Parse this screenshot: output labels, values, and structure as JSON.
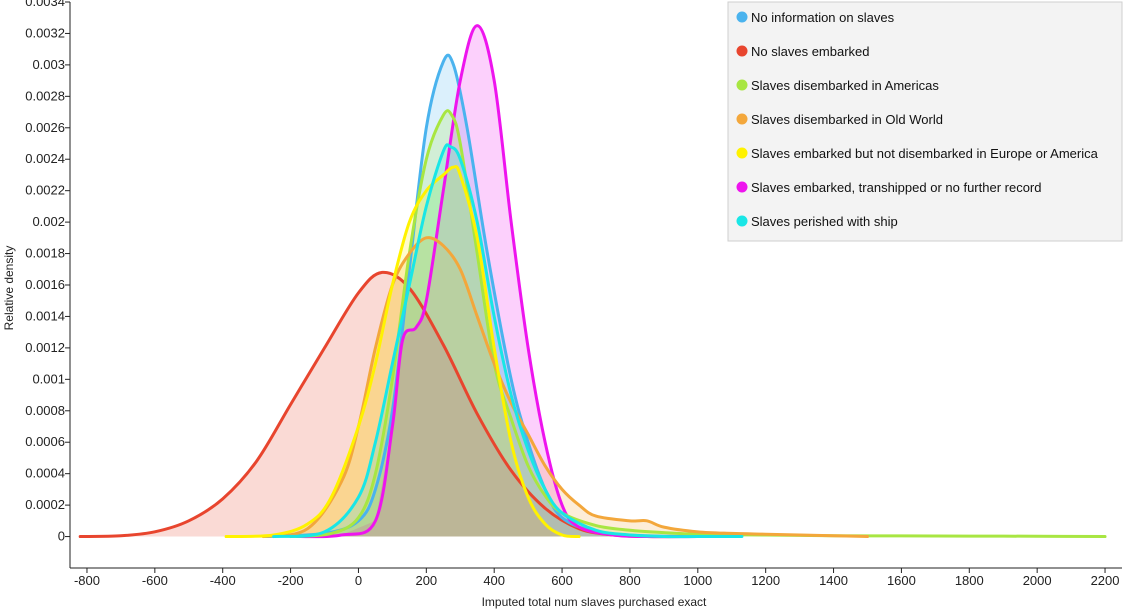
{
  "chart_data": {
    "type": "area",
    "title": "",
    "xlabel": "Imputed total num slaves purchased exact",
    "ylabel": "Relative density",
    "xlim": [
      -850,
      2250
    ],
    "ylim": [
      -0.0002,
      0.0034
    ],
    "xticks": [
      -800,
      -600,
      -400,
      -200,
      0,
      200,
      400,
      600,
      800,
      1000,
      1200,
      1400,
      1600,
      1800,
      2000,
      2200
    ],
    "yticks": [
      0,
      0.0002,
      0.0004,
      0.0006,
      0.0008,
      0.001,
      0.0012,
      0.0014,
      0.0016,
      0.0018,
      0.002,
      0.0022,
      0.0024,
      0.0026,
      0.0028,
      0.003,
      0.0032,
      0.0034
    ],
    "ytick_labels": [
      "0",
      "0.0002",
      "0.0004",
      "0.0006",
      "0.0008",
      "0.001",
      "0.0012",
      "0.0014",
      "0.0016",
      "0.0018",
      "0.002",
      "0.0022",
      "0.0024",
      "0.0026",
      "0.0028",
      "0.003",
      "0.0032",
      "0.0034"
    ],
    "grid": false,
    "legend_position": "top-right",
    "series": [
      {
        "name": "No slaves embarked",
        "color": "#e8452e",
        "x": [
          -820,
          -700,
          -600,
          -500,
          -400,
          -300,
          -200,
          -100,
          0,
          70,
          150,
          250,
          350,
          450,
          550,
          650,
          750,
          850,
          950,
          1070
        ],
        "y": [
          0,
          5e-06,
          3e-05,
          0.0001,
          0.00024,
          0.00048,
          0.00084,
          0.0012,
          0.00155,
          0.00168,
          0.00158,
          0.00122,
          0.00078,
          0.00042,
          0.00018,
          5e-05,
          1e-05,
          0,
          0,
          0
        ]
      },
      {
        "name": "No information on slaves",
        "color": "#4ab3ee",
        "x": [
          -280,
          -100,
          0,
          50,
          100,
          150,
          200,
          250,
          280,
          320,
          380,
          450,
          500,
          550,
          600,
          700,
          850,
          1000
        ],
        "y": [
          0,
          2e-05,
          0.0001,
          0.0003,
          0.0008,
          0.0017,
          0.0026,
          0.00302,
          0.003,
          0.0026,
          0.0018,
          0.001,
          0.0006,
          0.0003,
          0.00012,
          3e-05,
          5e-06,
          0
        ]
      },
      {
        "name": "Slaves embarked, transhipped or no further record",
        "color": "#ee14ee",
        "x": [
          -180,
          -50,
          50,
          100,
          130,
          170,
          200,
          250,
          300,
          350,
          400,
          450,
          500,
          550,
          600,
          650,
          750,
          850,
          1000
        ],
        "y": [
          0,
          1e-05,
          0.0001,
          0.0007,
          0.00125,
          0.00133,
          0.0015,
          0.0022,
          0.0029,
          0.00325,
          0.0029,
          0.002,
          0.0012,
          0.0006,
          0.0002,
          6e-05,
          1e-05,
          0,
          0
        ]
      },
      {
        "name": "Slaves disembarked in Americas",
        "color": "#a8e642",
        "x": [
          -200,
          -80,
          0,
          50,
          100,
          150,
          200,
          250,
          275,
          300,
          350,
          400,
          450,
          500,
          550,
          600,
          700,
          800,
          900,
          1000,
          1200,
          1400,
          1600,
          1800,
          2000,
          2200
        ],
        "y": [
          0,
          2e-05,
          0.00012,
          0.0004,
          0.001,
          0.0018,
          0.0024,
          0.00268,
          0.00268,
          0.0025,
          0.0018,
          0.0011,
          0.00075,
          0.00045,
          0.00026,
          0.00015,
          7e-05,
          4e-05,
          2.5e-05,
          1.5e-05,
          1e-05,
          5e-06,
          4e-06,
          3e-06,
          2e-06,
          0
        ]
      },
      {
        "name": "Slaves disembarked in Old World",
        "color": "#f3a73b",
        "x": [
          -280,
          -150,
          -50,
          0,
          50,
          100,
          150,
          200,
          250,
          300,
          350,
          400,
          450,
          500,
          550,
          600,
          650,
          700,
          800,
          850,
          900,
          1000,
          1100,
          1200,
          1300,
          1400,
          1500
        ],
        "y": [
          0,
          5e-05,
          0.00035,
          0.0007,
          0.0012,
          0.0016,
          0.0018,
          0.0019,
          0.00185,
          0.0017,
          0.0014,
          0.0011,
          0.00085,
          0.00065,
          0.00045,
          0.0003,
          0.0002,
          0.00013,
          0.0001,
          0.0001,
          6e-05,
          3e-05,
          2e-05,
          1.5e-05,
          1e-05,
          5e-06,
          0
        ]
      },
      {
        "name": "Slaves embarked but not disembarked in Europe or America",
        "color": "#fff200",
        "x": [
          -390,
          -250,
          -150,
          -80,
          0,
          50,
          100,
          150,
          200,
          250,
          280,
          300,
          350,
          400,
          450,
          500,
          550,
          600,
          650
        ],
        "y": [
          0,
          1e-05,
          8e-05,
          0.00025,
          0.0007,
          0.0011,
          0.0016,
          0.002,
          0.0022,
          0.0023,
          0.00235,
          0.0023,
          0.0019,
          0.0012,
          0.0006,
          0.00025,
          8e-05,
          1e-05,
          0
        ]
      },
      {
        "name": "Slaves perished with ship",
        "color": "#19e6e6",
        "x": [
          -250,
          -100,
          0,
          50,
          100,
          150,
          200,
          250,
          270,
          300,
          350,
          400,
          450,
          500,
          550,
          600,
          700,
          800,
          900,
          1000,
          1130
        ],
        "y": [
          0,
          3e-05,
          0.00025,
          0.0006,
          0.0011,
          0.0016,
          0.0021,
          0.00245,
          0.00248,
          0.0024,
          0.002,
          0.0014,
          0.0009,
          0.00055,
          0.0003,
          0.00015,
          4e-05,
          1e-05,
          0,
          0,
          0
        ]
      }
    ],
    "legend_order": [
      "No information on slaves",
      "No slaves embarked",
      "Slaves disembarked in Americas",
      "Slaves disembarked in Old World",
      "Slaves embarked but not disembarked in Europe or America",
      "Slaves embarked, transhipped or no further record",
      "Slaves perished with ship"
    ],
    "overlap_fill_color": "#bdb497"
  }
}
